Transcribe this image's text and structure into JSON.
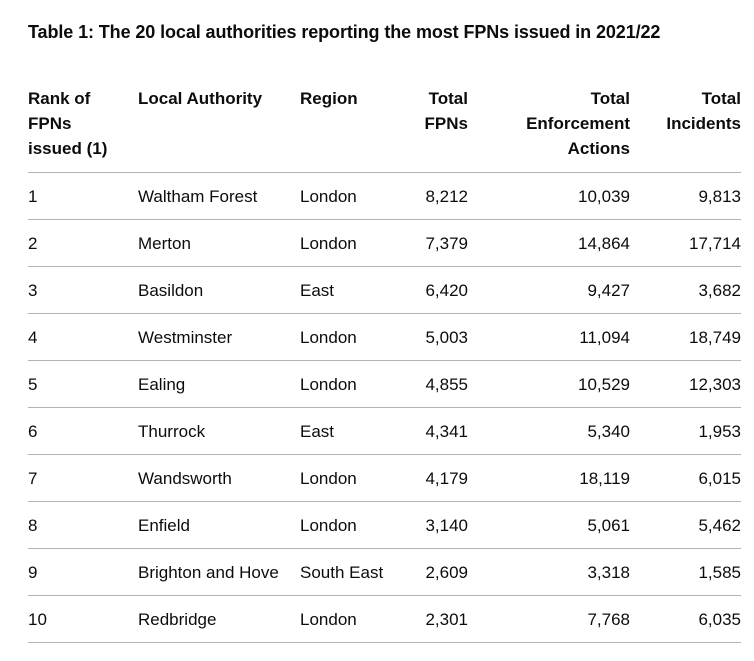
{
  "caption": "Table 1: The 20 local authorities reporting the most FPNs issued in 2021/22",
  "headers": {
    "rank": "Rank of FPNs issued (1)",
    "local_authority": "Local Authority",
    "region": "Region",
    "total_fpns": "Total FPNs",
    "total_enforcement_actions": "Total Enforcement Actions",
    "total_incidents": "Total Incidents"
  },
  "rows": [
    {
      "rank": "1",
      "local_authority": "Waltham Forest",
      "region": "London",
      "total_fpns": "8,212",
      "total_enforcement_actions": "10,039",
      "total_incidents": "9,813"
    },
    {
      "rank": "2",
      "local_authority": "Merton",
      "region": "London",
      "total_fpns": "7,379",
      "total_enforcement_actions": "14,864",
      "total_incidents": "17,714"
    },
    {
      "rank": "3",
      "local_authority": "Basildon",
      "region": "East",
      "total_fpns": "6,420",
      "total_enforcement_actions": "9,427",
      "total_incidents": "3,682"
    },
    {
      "rank": "4",
      "local_authority": "Westminster",
      "region": "London",
      "total_fpns": "5,003",
      "total_enforcement_actions": "11,094",
      "total_incidents": "18,749"
    },
    {
      "rank": "5",
      "local_authority": "Ealing",
      "region": "London",
      "total_fpns": "4,855",
      "total_enforcement_actions": "10,529",
      "total_incidents": "12,303"
    },
    {
      "rank": "6",
      "local_authority": "Thurrock",
      "region": "East",
      "total_fpns": "4,341",
      "total_enforcement_actions": "5,340",
      "total_incidents": "1,953"
    },
    {
      "rank": "7",
      "local_authority": "Wandsworth",
      "region": "London",
      "total_fpns": "4,179",
      "total_enforcement_actions": "18,119",
      "total_incidents": "6,015"
    },
    {
      "rank": "8",
      "local_authority": "Enfield",
      "region": "London",
      "total_fpns": "3,140",
      "total_enforcement_actions": "5,061",
      "total_incidents": "5,462"
    },
    {
      "rank": "9",
      "local_authority": "Brighton and Hove",
      "region": "South East",
      "total_fpns": "2,609",
      "total_enforcement_actions": "3,318",
      "total_incidents": "1,585"
    },
    {
      "rank": "10",
      "local_authority": "Redbridge",
      "region": "London",
      "total_fpns": "2,301",
      "total_enforcement_actions": "7,768",
      "total_incidents": "6,035"
    }
  ]
}
